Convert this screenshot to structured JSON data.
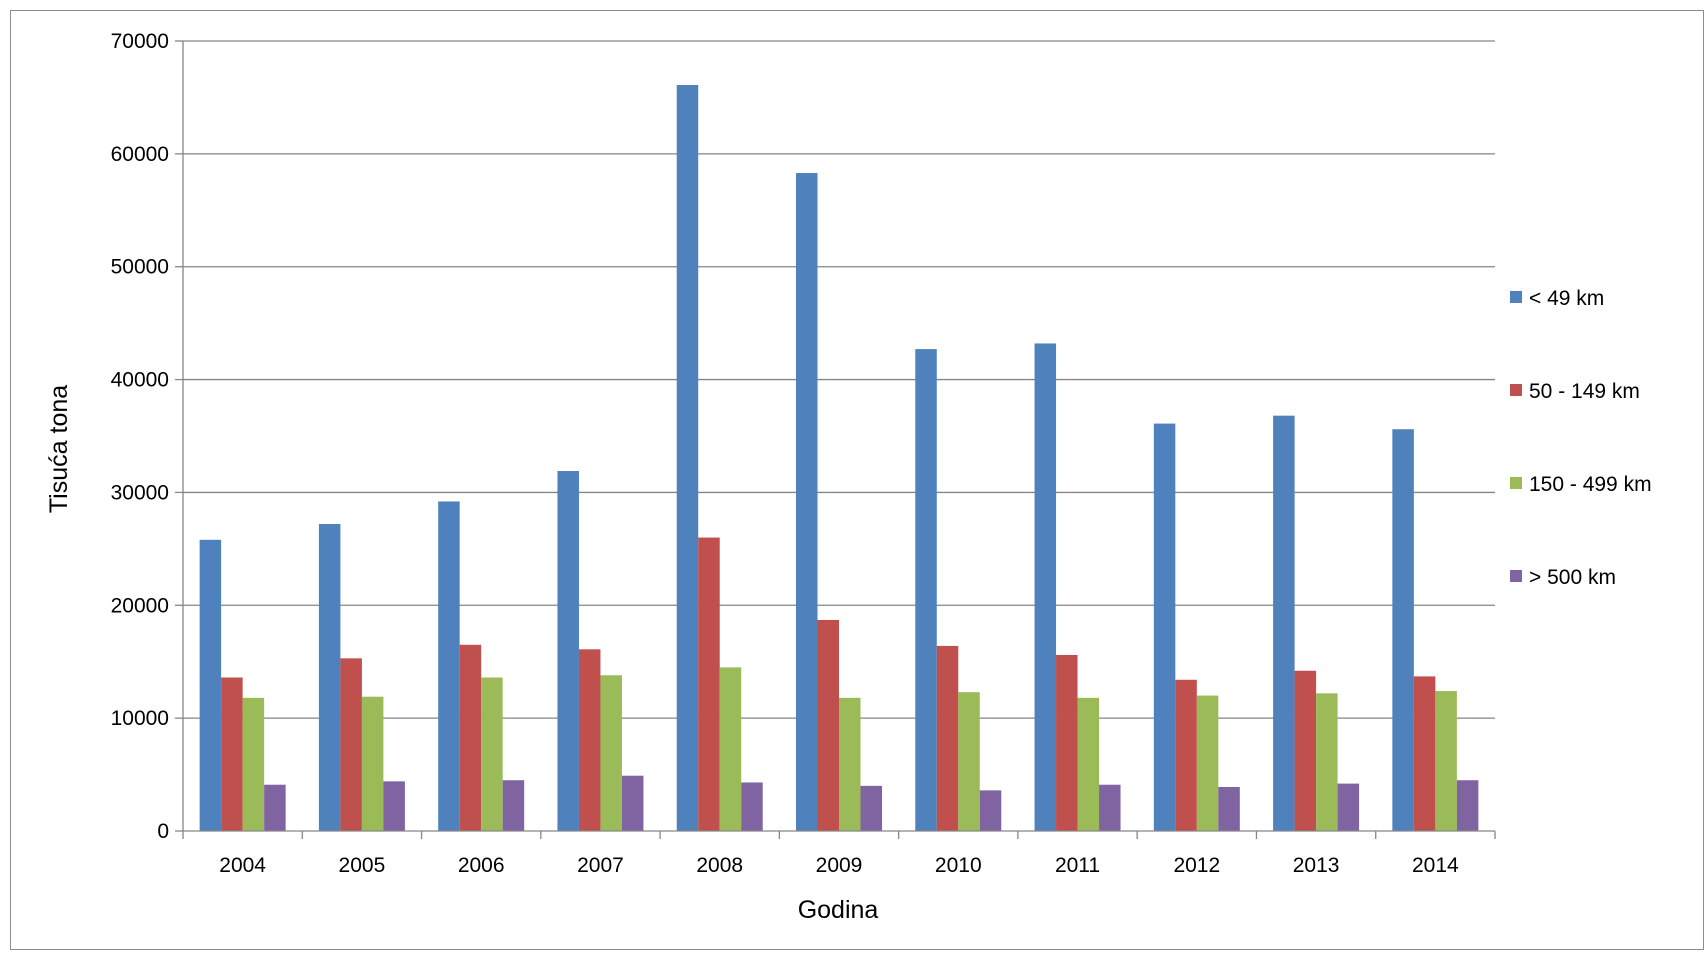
{
  "chart_data": {
    "type": "bar",
    "title": "",
    "xlabel": "Godina",
    "ylabel": "Tisuća tona",
    "ylim": [
      0,
      70000
    ],
    "yticks": [
      0,
      10000,
      20000,
      30000,
      40000,
      50000,
      60000,
      70000
    ],
    "grid": true,
    "legend_position": "right",
    "categories": [
      "2004",
      "2005",
      "2006",
      "2007",
      "2008",
      "2009",
      "2010",
      "2011",
      "2012",
      "2013",
      "2014"
    ],
    "series": [
      {
        "name": "< 49 km",
        "color": "#4f81bd",
        "values": [
          25800,
          27200,
          29200,
          31900,
          66100,
          58300,
          42700,
          43200,
          36100,
          36800,
          35600
        ]
      },
      {
        "name": "50 - 149 km",
        "color": "#c0504d",
        "values": [
          13600,
          15300,
          16500,
          16100,
          26000,
          18700,
          16400,
          15600,
          13400,
          14200,
          13700
        ]
      },
      {
        "name": "150 - 499 km",
        "color": "#9bbb59",
        "values": [
          11800,
          11900,
          13600,
          13800,
          14500,
          11800,
          12300,
          11800,
          12000,
          12200,
          12400
        ]
      },
      {
        "name": "> 500 km",
        "color": "#8064a2",
        "values": [
          4100,
          4400,
          4500,
          4900,
          4300,
          4000,
          3600,
          4100,
          3900,
          4200,
          4500
        ]
      }
    ]
  }
}
